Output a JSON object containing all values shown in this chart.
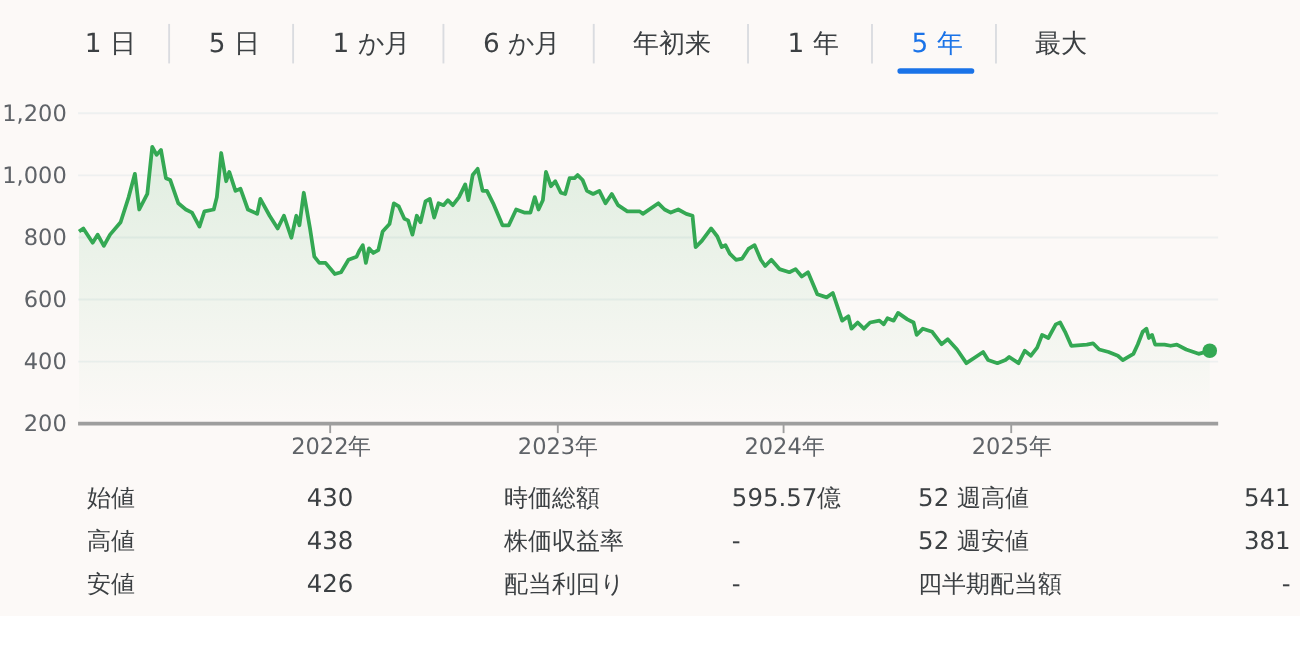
{
  "chart_data": [
    {
      "type": "other",
      "annotations": [
        "1 日",
        "5 日",
        "1 か月",
        "6 か月",
        "年初来",
        "1 年",
        "5 年",
        "最大"
      ],
      "colors": [
        "#3c4043",
        "#3c4043",
        "#3c4043",
        "#3c4043",
        "#3c4043",
        "#3c4043",
        "#1a73e8",
        "#3c4043"
      ]
    },
    {
      "type": "area",
      "x": [
        "2020-11-23",
        "2020-11-30",
        "2020-12-15",
        "2020-12-23",
        "2021-01-02",
        "2021-01-12",
        "2021-01-29",
        "2021-02-11",
        "2021-02-21",
        "2021-02-28",
        "2021-03-13",
        "2021-03-21",
        "2021-03-28",
        "2021-04-04",
        "2021-04-12",
        "2021-04-19",
        "2021-05-02",
        "2021-05-14",
        "2021-05-24",
        "2021-06-05",
        "2021-06-13",
        "2021-06-28",
        "2021-07-03",
        "2021-07-10",
        "2021-07-18",
        "2021-07-23",
        "2021-08-02",
        "2021-08-10",
        "2021-08-22",
        "2021-09-06",
        "2021-09-11",
        "2021-09-26",
        "2021-10-09",
        "2021-10-19",
        "2021-10-31",
        "2021-11-08",
        "2021-11-13",
        "2021-11-20",
        "2021-11-30",
        "2021-12-07",
        "2021-12-15",
        "2021-12-25",
        "2022-01-09",
        "2022-01-19",
        "2022-01-31",
        "2022-02-13",
        "2022-02-18",
        "2022-02-23",
        "2022-02-28",
        "2022-03-05",
        "2022-03-12",
        "2022-03-20",
        "2022-03-27",
        "2022-04-07",
        "2022-04-14",
        "2022-04-22",
        "2022-05-01",
        "2022-05-07",
        "2022-05-14",
        "2022-05-21",
        "2022-05-27",
        "2022-06-04",
        "2022-06-11",
        "2022-06-18",
        "2022-06-25",
        "2022-07-03",
        "2022-07-10",
        "2022-07-18",
        "2022-07-28",
        "2022-08-07",
        "2022-08-12",
        "2022-08-19",
        "2022-08-27",
        "2022-09-04",
        "2022-09-11",
        "2022-09-21",
        "2022-10-06",
        "2022-10-16",
        "2022-10-28",
        "2022-11-10",
        "2022-11-20",
        "2022-11-27",
        "2022-12-03",
        "2022-12-10",
        "2022-12-15",
        "2022-12-23",
        "2022-12-30",
        "2023-01-08",
        "2023-01-15",
        "2023-01-22",
        "2023-01-30",
        "2023-02-04",
        "2023-02-12",
        "2023-02-19",
        "2023-03-01",
        "2023-03-11",
        "2023-03-21",
        "2023-03-31",
        "2023-04-10",
        "2023-04-25",
        "2023-05-15",
        "2023-05-20",
        "2023-06-14",
        "2023-06-24",
        "2023-07-04",
        "2023-07-16",
        "2023-07-29",
        "2023-08-08",
        "2023-08-13",
        "2023-08-23",
        "2023-09-07",
        "2023-09-17",
        "2023-09-24",
        "2023-09-30",
        "2023-10-07",
        "2023-10-17",
        "2023-10-27",
        "2023-11-06",
        "2023-11-16",
        "2023-11-26",
        "2023-12-03",
        "2023-12-13",
        "2023-12-26",
        "2024-01-11",
        "2024-01-21",
        "2024-01-31",
        "2024-02-10",
        "2024-02-25",
        "2024-03-11",
        "2024-03-21",
        "2024-04-05",
        "2024-04-15",
        "2024-04-20",
        "2024-04-30",
        "2024-05-10",
        "2024-05-20",
        "2024-06-04",
        "2024-06-11",
        "2024-06-17",
        "2024-06-27",
        "2024-07-04",
        "2024-07-19",
        "2024-07-29",
        "2024-08-03",
        "2024-08-13",
        "2024-08-28",
        "2024-09-12",
        "2024-09-22",
        "2024-10-07",
        "2024-10-22",
        "2024-11-06",
        "2024-11-18",
        "2024-11-26",
        "2024-12-11",
        "2024-12-24",
        "2024-12-30",
        "2025-01-14",
        "2025-01-24",
        "2025-02-03",
        "2025-02-13",
        "2025-02-21",
        "2025-03-03",
        "2025-03-15",
        "2025-03-22",
        "2025-03-30",
        "2025-04-09",
        "2025-05-04",
        "2025-05-14",
        "2025-05-24",
        "2025-06-08",
        "2025-06-23",
        "2025-07-01",
        "2025-07-18",
        "2025-07-25",
        "2025-08-02",
        "2025-08-08",
        "2025-08-12",
        "2025-08-17",
        "2025-08-22",
        "2025-09-06",
        "2025-09-16",
        "2025-09-26",
        "2025-10-11",
        "2025-10-31",
        "2025-11-18"
      ],
      "series": [
        {
          "color": "#34a853",
          "values": [
            816,
            826,
            780,
            806,
            770,
            806,
            846,
            927,
            1002,
            887,
            937,
            1089,
            1063,
            1079,
            988,
            982,
            907,
            887,
            877,
            832,
            881,
            887,
            927,
            1069,
            978,
            1008,
            947,
            954,
            887,
            873,
            921,
            867,
            826,
            867,
            796,
            867,
            836,
            941,
            826,
            735,
            715,
            715,
            679,
            685,
            725,
            735,
            756,
            772,
            715,
            762,
            747,
            756,
            816,
            840,
            907,
            897,
            857,
            852,
            806,
            867,
            846,
            913,
            921,
            861,
            907,
            901,
            917,
            901,
            927,
            968,
            917,
            998,
            1018,
            947,
            947,
            907,
            836,
            836,
            887,
            877,
            877,
            927,
            887,
            917,
            1008,
            962,
            978,
            941,
            937,
            988,
            988,
            998,
            982,
            947,
            937,
            947,
            907,
            937,
            901,
            881,
            881,
            873,
            907,
            887,
            877,
            887,
            873,
            867,
            766,
            786,
            826,
            800,
            766,
            772,
            745,
            725,
            729,
            760,
            772,
            725,
            705,
            725,
            695,
            685,
            695,
            671,
            685,
            614,
            604,
            618,
            529,
            543,
            503,
            523,
            503,
            523,
            529,
            517,
            537,
            529,
            554,
            533,
            523,
            483,
            503,
            493,
            453,
            469,
            436,
            392,
            412,
            428,
            402,
            392,
            402,
            412,
            392,
            432,
            416,
            442,
            483,
            473,
            517,
            523,
            493,
            448,
            452,
            456,
            436,
            428,
            416,
            402,
            422,
            452,
            493,
            503,
            473,
            483,
            452,
            452,
            448,
            452,
            436,
            422,
            432
          ]
        },
        {
          "type": "scatter",
          "color": "#34a853",
          "x": [
            "2025-11-18"
          ],
          "values": [
            432
          ]
        }
      ],
      "xlim": [
        "2020-11-20",
        "2025-11-30"
      ],
      "xticks": [
        {
          "value": "2022-01-01",
          "label": "2022年"
        },
        {
          "value": "2023-01-01",
          "label": "2023年"
        },
        {
          "value": "2024-01-01",
          "label": "2024年"
        },
        {
          "value": "2025-01-01",
          "label": "2025年"
        }
      ],
      "ylim": [
        200,
        1200
      ],
      "yticks": [
        200,
        400,
        600,
        800,
        {
          "value": 1000,
          "label": "1,000"
        },
        {
          "value": 1200,
          "label": "1,200"
        }
      ],
      "grid": "y"
    },
    {
      "type": "other",
      "annotations": [
        "始値",
        "430",
        "時価総額",
        "595.57億",
        "52 週高値",
        "541",
        "高値",
        "438",
        "株価収益率",
        "-",
        "52 週安値",
        "381",
        "安値",
        "426",
        "配当利回り",
        "-",
        "四半期配当額",
        "-"
      ]
    }
  ]
}
